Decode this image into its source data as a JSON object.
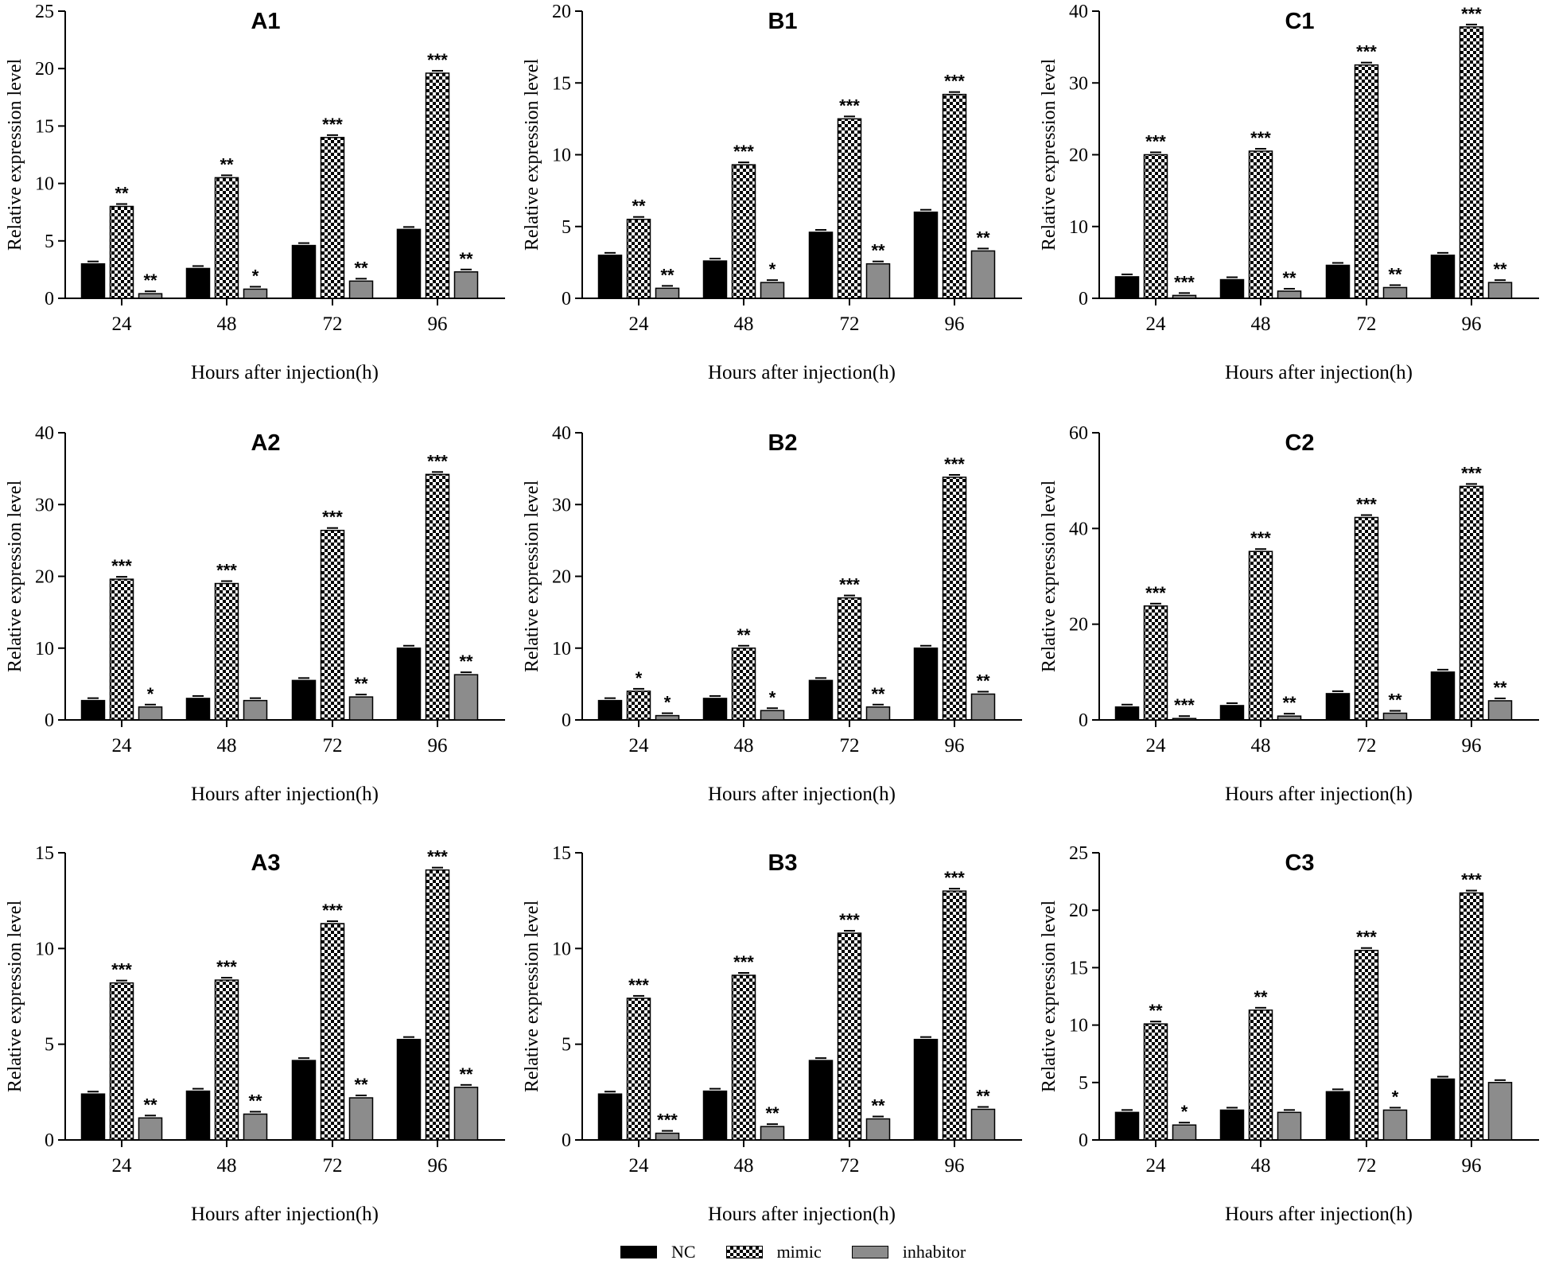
{
  "colors": {
    "nc": "#000000",
    "mimic_dark": "#000000",
    "mimic_light": "#ffffff",
    "inhibitor": "#8c8c8c",
    "axis": "#000000"
  },
  "legend": {
    "items": [
      {
        "key": "nc",
        "label": "NC"
      },
      {
        "key": "mimic",
        "label": "mimic"
      },
      {
        "key": "inhibitor",
        "label": "inhabitor"
      }
    ]
  },
  "chart_data": [
    {
      "id": "A1",
      "title": "A1",
      "type": "bar",
      "categories": [
        "24",
        "48",
        "72",
        "96"
      ],
      "xlabel": "Hours after injection(h)",
      "ylabel": "Relative expression level",
      "ylim": [
        0,
        25
      ],
      "yticks": [
        0,
        5,
        10,
        15,
        20,
        25
      ],
      "series": [
        {
          "name": "NC",
          "values": [
            3.0,
            2.6,
            4.6,
            6.0
          ]
        },
        {
          "name": "mimic",
          "values": [
            8.0,
            10.5,
            14.0,
            19.6
          ]
        },
        {
          "name": "inhabitor",
          "values": [
            0.4,
            0.8,
            1.5,
            2.3
          ]
        }
      ],
      "significance": {
        "mimic": [
          "**",
          "**",
          "***",
          "***"
        ],
        "inhabitor": [
          "**",
          "*",
          "**",
          "**"
        ]
      }
    },
    {
      "id": "B1",
      "title": "B1",
      "type": "bar",
      "categories": [
        "24",
        "48",
        "72",
        "96"
      ],
      "xlabel": "Hours after injection(h)",
      "ylabel": "Relative expression level",
      "ylim": [
        0,
        20
      ],
      "yticks": [
        0,
        5,
        10,
        15,
        20
      ],
      "series": [
        {
          "name": "NC",
          "values": [
            3.0,
            2.6,
            4.6,
            6.0
          ]
        },
        {
          "name": "mimic",
          "values": [
            5.5,
            9.3,
            12.5,
            14.2
          ]
        },
        {
          "name": "inhabitor",
          "values": [
            0.7,
            1.1,
            2.4,
            3.3
          ]
        }
      ],
      "significance": {
        "mimic": [
          "**",
          "***",
          "***",
          "***"
        ],
        "inhabitor": [
          "**",
          "*",
          "**",
          "**"
        ]
      }
    },
    {
      "id": "C1",
      "title": "C1",
      "type": "bar",
      "categories": [
        "24",
        "48",
        "72",
        "96"
      ],
      "xlabel": "Hours after injection(h)",
      "ylabel": "Relative expression level",
      "ylim": [
        0,
        40
      ],
      "yticks": [
        0,
        10,
        20,
        30,
        40
      ],
      "series": [
        {
          "name": "NC",
          "values": [
            3.0,
            2.6,
            4.6,
            6.0
          ]
        },
        {
          "name": "mimic",
          "values": [
            20.0,
            20.5,
            32.5,
            37.8
          ]
        },
        {
          "name": "inhabitor",
          "values": [
            0.4,
            1.0,
            1.5,
            2.2
          ]
        }
      ],
      "significance": {
        "mimic": [
          "***",
          "***",
          "***",
          "***"
        ],
        "inhabitor": [
          "***",
          "**",
          "**",
          "**"
        ]
      }
    },
    {
      "id": "A2",
      "title": "A2",
      "type": "bar",
      "categories": [
        "24",
        "48",
        "72",
        "96"
      ],
      "xlabel": "Hours after injection(h)",
      "ylabel": "Relative expression level",
      "ylim": [
        0,
        40
      ],
      "yticks": [
        0,
        10,
        20,
        30,
        40
      ],
      "series": [
        {
          "name": "NC",
          "values": [
            2.7,
            3.0,
            5.5,
            10.0
          ]
        },
        {
          "name": "mimic",
          "values": [
            19.6,
            19.0,
            26.4,
            34.2
          ]
        },
        {
          "name": "inhabitor",
          "values": [
            1.8,
            2.7,
            3.2,
            6.3
          ]
        }
      ],
      "significance": {
        "mimic": [
          "***",
          "***",
          "***",
          "***"
        ],
        "inhabitor": [
          "*",
          "",
          "**",
          "**"
        ]
      }
    },
    {
      "id": "B2",
      "title": "B2",
      "type": "bar",
      "categories": [
        "24",
        "48",
        "72",
        "96"
      ],
      "xlabel": "Hours after injection(h)",
      "ylabel": "Relative expression level",
      "ylim": [
        0,
        40
      ],
      "yticks": [
        0,
        10,
        20,
        30,
        40
      ],
      "series": [
        {
          "name": "NC",
          "values": [
            2.7,
            3.0,
            5.5,
            10.0
          ]
        },
        {
          "name": "mimic",
          "values": [
            4.0,
            10.0,
            17.0,
            33.8
          ]
        },
        {
          "name": "inhabitor",
          "values": [
            0.6,
            1.3,
            1.8,
            3.6
          ]
        }
      ],
      "significance": {
        "mimic": [
          "*",
          "**",
          "***",
          "***"
        ],
        "inhabitor": [
          "*",
          "*",
          "**",
          "**"
        ]
      }
    },
    {
      "id": "C2",
      "title": "C2",
      "type": "bar",
      "categories": [
        "24",
        "48",
        "72",
        "96"
      ],
      "xlabel": "Hours after injection(h)",
      "ylabel": "Relative expression level",
      "ylim": [
        0,
        60
      ],
      "yticks": [
        0,
        20,
        40,
        60
      ],
      "series": [
        {
          "name": "NC",
          "values": [
            2.7,
            3.0,
            5.5,
            10.0
          ]
        },
        {
          "name": "mimic",
          "values": [
            23.8,
            35.2,
            42.3,
            48.8
          ]
        },
        {
          "name": "inhabitor",
          "values": [
            0.3,
            0.8,
            1.4,
            4.0
          ]
        }
      ],
      "significance": {
        "mimic": [
          "***",
          "***",
          "***",
          "***"
        ],
        "inhabitor": [
          "***",
          "**",
          "**",
          "**"
        ]
      }
    },
    {
      "id": "A3",
      "title": "A3",
      "type": "bar",
      "categories": [
        "24",
        "48",
        "72",
        "96"
      ],
      "xlabel": "Hours after injection(h)",
      "ylabel": "Relative expression level",
      "ylim": [
        0,
        15
      ],
      "yticks": [
        0,
        5,
        10,
        15
      ],
      "series": [
        {
          "name": "NC",
          "values": [
            2.4,
            2.55,
            4.15,
            5.25
          ]
        },
        {
          "name": "mimic",
          "values": [
            8.2,
            8.35,
            11.3,
            14.1
          ]
        },
        {
          "name": "inhabitor",
          "values": [
            1.15,
            1.35,
            2.2,
            2.75
          ]
        }
      ],
      "significance": {
        "mimic": [
          "***",
          "***",
          "***",
          "***"
        ],
        "inhabitor": [
          "**",
          "**",
          "**",
          "**"
        ]
      }
    },
    {
      "id": "B3",
      "title": "B3",
      "type": "bar",
      "categories": [
        "24",
        "48",
        "72",
        "96"
      ],
      "xlabel": "Hours after injection(h)",
      "ylabel": "Relative expression level",
      "ylim": [
        0,
        15
      ],
      "yticks": [
        0,
        5,
        10,
        15
      ],
      "series": [
        {
          "name": "NC",
          "values": [
            2.4,
            2.55,
            4.15,
            5.25
          ]
        },
        {
          "name": "mimic",
          "values": [
            7.4,
            8.6,
            10.8,
            13.0
          ]
        },
        {
          "name": "inhabitor",
          "values": [
            0.35,
            0.7,
            1.1,
            1.6
          ]
        }
      ],
      "significance": {
        "mimic": [
          "***",
          "***",
          "***",
          "***"
        ],
        "inhabitor": [
          "***",
          "**",
          "**",
          "**"
        ]
      }
    },
    {
      "id": "C3",
      "title": "C3",
      "type": "bar",
      "categories": [
        "24",
        "48",
        "72",
        "96"
      ],
      "xlabel": "Hours after injection(h)",
      "ylabel": "Relative expression level",
      "ylim": [
        0,
        25
      ],
      "yticks": [
        0,
        5,
        10,
        15,
        20,
        25
      ],
      "series": [
        {
          "name": "NC",
          "values": [
            2.4,
            2.6,
            4.2,
            5.3
          ]
        },
        {
          "name": "mimic",
          "values": [
            10.1,
            11.3,
            16.5,
            21.5
          ]
        },
        {
          "name": "inhabitor",
          "values": [
            1.3,
            2.4,
            2.6,
            5.0
          ]
        }
      ],
      "significance": {
        "mimic": [
          "**",
          "**",
          "***",
          "***"
        ],
        "inhabitor": [
          "*",
          "",
          "*",
          ""
        ]
      }
    }
  ]
}
